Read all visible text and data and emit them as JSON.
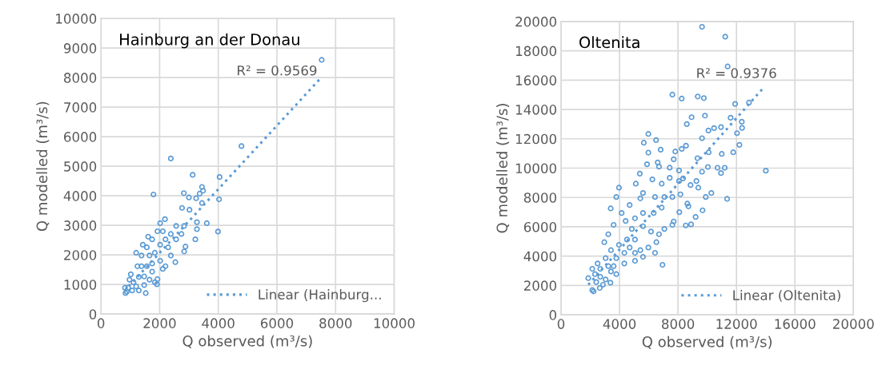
{
  "chart_data": [
    {
      "type": "scatter",
      "title": "Hainburg an der Donau",
      "xlabel": "Q observed (m³/s)",
      "ylabel": "Q modelled (m³/s)",
      "annotations": [
        "R² = 0.9569"
      ],
      "xlim": [
        0,
        10000
      ],
      "xticks": [
        0,
        2000,
        4000,
        6000,
        8000,
        10000
      ],
      "ylim": [
        0,
        10000
      ],
      "yticks": [
        0,
        1000,
        2000,
        3000,
        4000,
        5000,
        6000,
        7000,
        8000,
        9000,
        10000
      ],
      "grid": true,
      "legend": "bottom right",
      "series": [
        {
          "type": "scatter",
          "marker": "circle",
          "color": "#5b9bd5",
          "x": [
            7527,
            4791,
            2382,
            3127,
            4045,
            1791,
            3445,
            3482,
            2827,
            4027,
            3364,
            3000,
            3245,
            3445,
            2764,
            3609,
            3991,
            3273,
            3218,
            3273,
            2882,
            2836,
            2536,
            1909,
            1527,
            836,
            818,
            2182,
            2018,
            3018,
            2836,
            2564,
            2291,
            1745,
            1427,
            1200,
            1245,
            1018,
            1655,
            2109,
            2382,
            2018,
            1655,
            1382,
            1109,
            927,
            1564,
            1836,
            1927,
            2564,
            2745,
            2200,
            1473,
            1291,
            1745,
            1200,
            973,
            1473,
            1927,
            2200,
            1745,
            1382,
            1564,
            2018,
            2382,
            2109,
            1609,
            1836,
            1291,
            1064,
            882
          ],
          "values": [
            8600,
            5682,
            5264,
            4709,
            4636,
            4045,
            4300,
            4173,
            4091,
            3882,
            4073,
            3945,
            3918,
            3755,
            3591,
            3073,
            2791,
            3109,
            2527,
            2873,
            2282,
            2118,
            1755,
            1009,
            709,
            709,
            891,
            3209,
            3073,
            3527,
            2982,
            2527,
            2255,
            2527,
            2345,
            2073,
            1618,
            1345,
            1164,
            1527,
            1982,
            1800,
            1982,
            1618,
            1073,
            891,
            1618,
            2073,
            2800,
            2982,
            2709,
            2527,
            982,
            1255,
            1436,
            936,
            1164,
            1273,
            1182,
            1618,
            1709,
            1982,
            2255,
            2345,
            2709,
            2800,
            2618,
            1073,
            800,
            800,
            755
          ]
        },
        {
          "type": "line",
          "marker": "none",
          "name": "Linear (Hainburg...",
          "color": "#5b9bd5",
          "line_style": "dotted",
          "x": [
            800,
            7500
          ],
          "values": [
            780,
            7990
          ]
        }
      ]
    },
    {
      "type": "scatter",
      "title": "Oltenita",
      "xlabel": "Q observed (m³/s)",
      "ylabel": "Q modelled (m³/s)",
      "annotations": [
        "R² = 0.9376"
      ],
      "xlim": [
        0,
        20000
      ],
      "xticks": [
        0,
        4000,
        8000,
        12000,
        16000,
        20000
      ],
      "ylim": [
        0,
        20000
      ],
      "yticks": [
        0,
        2000,
        4000,
        6000,
        8000,
        10000,
        12000,
        14000,
        16000,
        18000,
        20000
      ],
      "grid": true,
      "legend": "bottom right",
      "series": [
        {
          "type": "scatter",
          "marker": "circle",
          "color": "#5b9bd5",
          "x": [
            9644,
            11233,
            11397,
            14009,
            11909,
            12858,
            7616,
            8256,
            9352,
            9772,
            9845,
            8932,
            8603,
            11598,
            12365,
            12384,
            12037,
            12201,
            11781,
            9644,
            10082,
            10466,
            10941,
            5973,
            5662,
            6502,
            5973,
            6813,
            7817,
            8548,
            8256,
            9333,
            10100,
            10995,
            10703,
            11196,
            10941,
            11361,
            10046,
            9644,
            10283,
            9900,
            9680,
            9206,
            8895,
            8530,
            8640,
            8713,
            8091,
            7707,
            7616,
            6941,
            3963,
            3781,
            3397,
            5114,
            5388,
            5881,
            6612,
            6703,
            7434,
            7707,
            8072,
            8347,
            8858,
            9388,
            9260,
            8072,
            7434,
            6886,
            6247,
            5607,
            5424,
            6429,
            7068,
            7616,
            8164,
            6886,
            6338,
            5607,
            5059,
            4694,
            4146,
            4420,
            3598,
            4840,
            5607,
            6155,
            6703,
            7068,
            6521,
            5973,
            5424,
            6429,
            5059,
            4694,
            3963,
            3233,
            2959,
            3415,
            3781,
            4329,
            5059,
            5607,
            3050,
            2502,
            2137,
            1863,
            2137,
            2228,
            2648,
            3233,
            2685,
            3050,
            3415,
            2411,
            2867,
            3781,
            3379,
            2320,
            3598,
            2685,
            4329,
            5059,
            4511
          ],
          "values": [
            19637,
            18966,
            16935,
            9828,
            14379,
            14470,
            15014,
            14742,
            14887,
            14778,
            13581,
            13472,
            13001,
            13436,
            13164,
            12747,
            12384,
            11586,
            11079,
            12040,
            12566,
            12729,
            12801,
            12330,
            11731,
            11912,
            11061,
            11260,
            11133,
            11532,
            11314,
            10679,
            11079,
            10970,
            10027,
            10027,
            9665,
            7906,
            10082,
            9756,
            8305,
            8033,
            7126,
            6673,
            6166,
            6093,
            7580,
            7398,
            7000,
            6365,
            6130,
            3409,
            8668,
            8033,
            7253,
            8940,
            9629,
            10264,
            10390,
            10101,
            10030,
            10608,
            9846,
            9302,
            8850,
            8668,
            9121,
            9121,
            9339,
            8940,
            9230,
            8305,
            7942,
            8033,
            8033,
            8033,
            8215,
            7308,
            6945,
            6945,
            6582,
            7489,
            6945,
            6401,
            6130,
            5857,
            6039,
            5676,
            5494,
            5857,
            4950,
            4588,
            4407,
            4225,
            5132,
            4588,
            4769,
            5494,
            4950,
            4407,
            3863,
            3500,
            3681,
            3953,
            3863,
            3500,
            3137,
            2502,
            1686,
            1596,
            1831,
            3318,
            2593,
            2412,
            2956,
            2230,
            2049,
            2774,
            2194,
            2774,
            3318,
            3137,
            4225,
            4225,
            5132
          ]
        },
        {
          "type": "line",
          "marker": "none",
          "name": "Linear (Oltenita)",
          "color": "#5b9bd5",
          "line_style": "dotted",
          "x": [
            1863,
            13918
          ],
          "values": [
            2049,
            15558
          ]
        }
      ]
    }
  ]
}
